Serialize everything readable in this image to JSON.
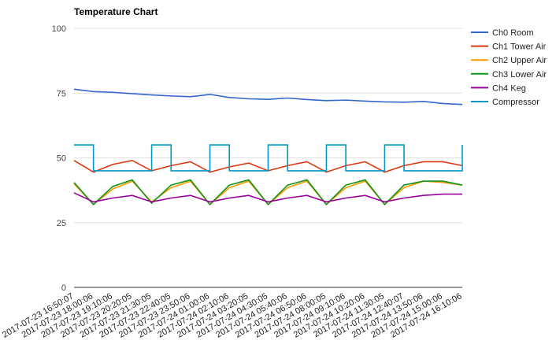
{
  "chart_data": {
    "type": "line",
    "title": "Temperature Chart",
    "xlabel": "",
    "ylabel": "",
    "ylim": [
      0,
      100
    ],
    "yticks": [
      0,
      25,
      50,
      75,
      100
    ],
    "grid": true,
    "legend_position": "right",
    "x_ticks": [
      "2017-07-23 16:50:07",
      "2017-07-23 18:00:06",
      "2017-07-23 19:10:06",
      "2017-07-23 20:20:05",
      "2017-07-23 21:30:05",
      "2017-07-23 22:40:05",
      "2017-07-23 23:50:06",
      "2017-07-24 01:00:06",
      "2017-07-24 02:10:06",
      "2017-07-24 03:20:05",
      "2017-07-24 04:30:05",
      "2017-07-24 05:40:06",
      "2017-07-24 06:50:06",
      "2017-07-24 08:00:05",
      "2017-07-24 09:10:06",
      "2017-07-24 10:20:06",
      "2017-07-24 11:30:05",
      "2017-07-24 12:40:07",
      "2017-07-24 13:50:06",
      "2017-07-24 15:00:06",
      "2017-07-24 16:10:06"
    ],
    "series": [
      {
        "name": "Ch0 Room",
        "color": "#3366cc",
        "values": [
          76.5,
          75.6,
          75.3,
          74.8,
          74.3,
          73.9,
          73.6,
          74.5,
          73.3,
          72.8,
          72.6,
          73.1,
          72.5,
          72.1,
          72.3,
          71.9,
          71.6,
          71.5,
          71.8,
          71.0,
          70.6
        ]
      },
      {
        "name": "Ch1 Tower Air",
        "color": "#dc3912",
        "values": [
          49.0,
          44.5,
          47.5,
          49.0,
          45.0,
          47.0,
          48.5,
          44.5,
          46.5,
          48.0,
          45.0,
          47.0,
          48.5,
          44.5,
          47.0,
          48.5,
          44.5,
          47.0,
          48.5,
          48.5,
          47.0
        ]
      },
      {
        "name": "Ch2 Upper Air",
        "color": "#ff9900",
        "values": [
          40.0,
          32.0,
          38.0,
          41.0,
          33.0,
          38.5,
          41.0,
          32.0,
          38.5,
          41.0,
          32.0,
          38.5,
          41.0,
          32.0,
          38.5,
          41.0,
          32.0,
          38.5,
          41.0,
          40.5,
          39.5
        ]
      },
      {
        "name": "Ch3 Lower Air",
        "color": "#109618",
        "values": [
          40.5,
          32.0,
          39.0,
          41.5,
          32.5,
          39.5,
          41.5,
          32.0,
          39.5,
          41.5,
          32.0,
          39.5,
          41.5,
          32.0,
          39.5,
          41.5,
          32.0,
          39.5,
          41.0,
          41.0,
          39.5
        ]
      },
      {
        "name": "Ch4 Keg",
        "color": "#990099",
        "values": [
          36.5,
          33.0,
          34.5,
          35.5,
          33.0,
          34.5,
          35.5,
          33.0,
          34.5,
          35.5,
          33.0,
          34.5,
          35.5,
          33.0,
          34.5,
          35.5,
          33.0,
          34.5,
          35.5,
          36.0,
          36.0
        ]
      },
      {
        "name": "Compressor",
        "color": "#0099c6",
        "values": [
          55,
          45,
          45,
          45,
          55,
          45,
          45,
          55,
          45,
          45,
          55,
          45,
          45,
          55,
          45,
          45,
          55,
          45,
          45,
          45,
          55
        ]
      }
    ]
  }
}
